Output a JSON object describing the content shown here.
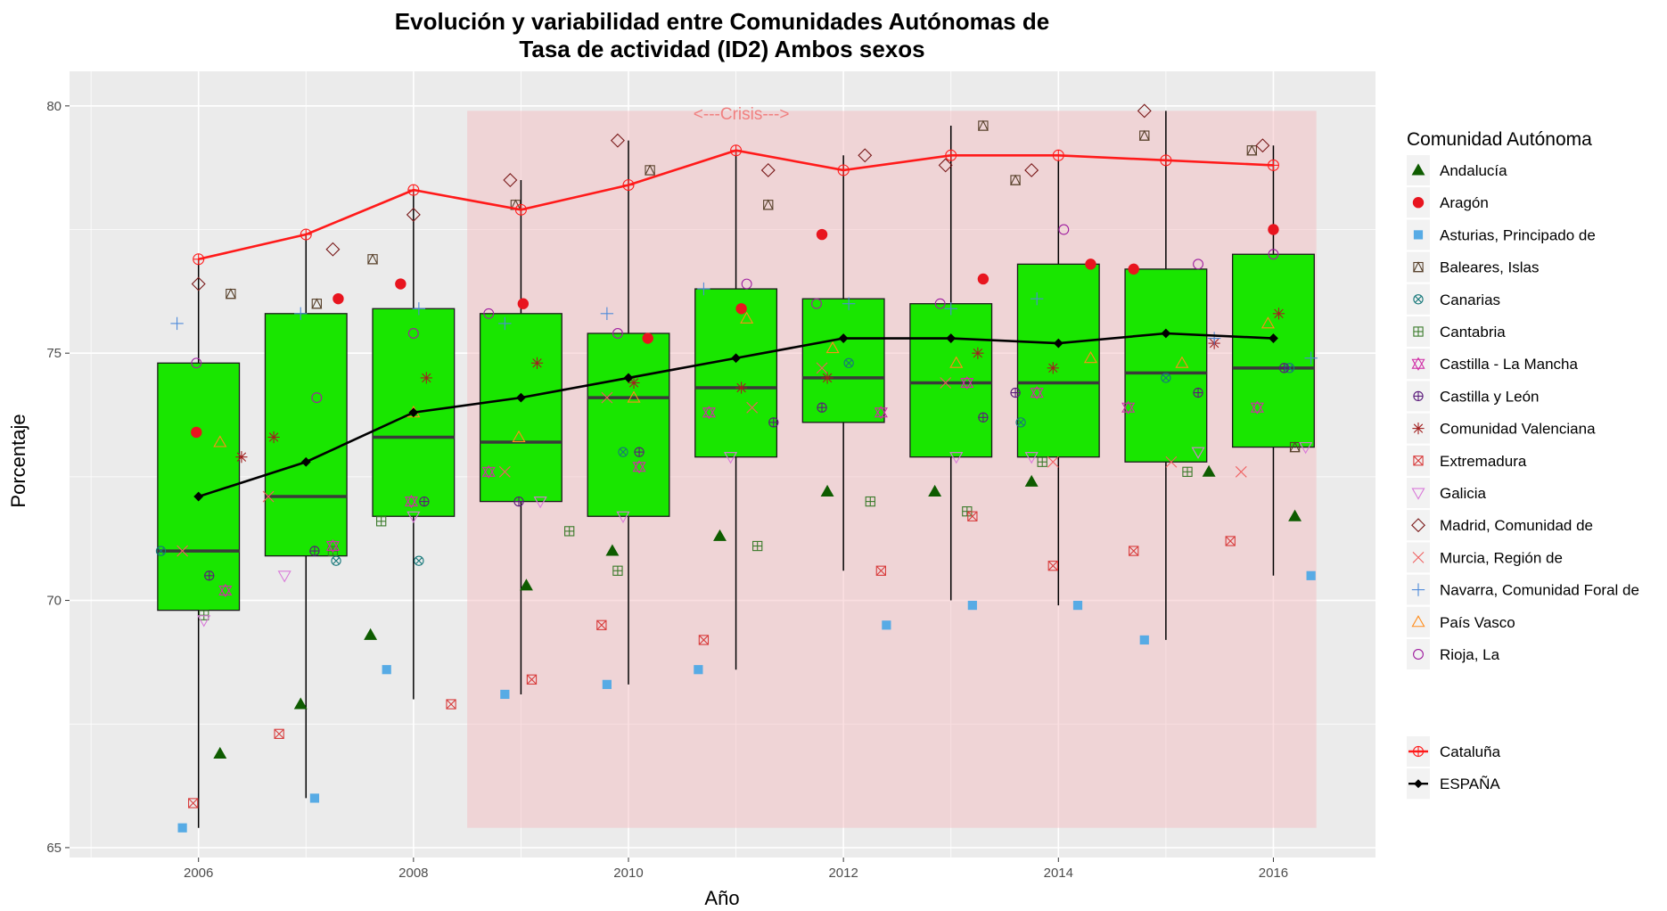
{
  "chart_data": {
    "type": "box",
    "title_line1": "Evolución y variabilidad entre Comunidades Autónomas de",
    "title_line2": "Tasa de actividad (ID2) Ambos sexos",
    "xlabel": "Año",
    "ylabel": "Porcentaje",
    "xlim": [
      2004.8,
      2016.95
    ],
    "ylim": [
      64.8,
      80.7
    ],
    "x_ticks": [
      2006,
      2008,
      2010,
      2012,
      2014,
      2016
    ],
    "y_ticks": [
      65,
      70,
      75,
      80
    ],
    "grid": true,
    "legend_position": "right",
    "legend_title": "Comunidad Autónoma",
    "crisis": {
      "label": "<---Crisis--->",
      "x_start": 2008.5,
      "x_end": 2016.4,
      "y_min": 65.4,
      "y_max": 79.9,
      "color": "#f4b8bd"
    },
    "box_color": "#19e600",
    "boxes": [
      {
        "year": 2006,
        "low": 65.4,
        "q1": 69.8,
        "median": 71.0,
        "q3": 74.8,
        "high": 76.9
      },
      {
        "year": 2007,
        "low": 66.0,
        "q1": 70.9,
        "median": 72.1,
        "q3": 75.8,
        "high": 77.4
      },
      {
        "year": 2008,
        "low": 68.0,
        "q1": 71.7,
        "median": 73.3,
        "q3": 75.9,
        "high": 78.3
      },
      {
        "year": 2009,
        "low": 68.1,
        "q1": 72.0,
        "median": 73.2,
        "q3": 75.8,
        "high": 78.5
      },
      {
        "year": 2010,
        "low": 68.3,
        "q1": 71.7,
        "median": 74.1,
        "q3": 75.4,
        "high": 79.3
      },
      {
        "year": 2011,
        "low": 68.6,
        "q1": 72.9,
        "median": 74.3,
        "q3": 76.3,
        "high": 79.1
      },
      {
        "year": 2012,
        "low": 70.6,
        "q1": 73.6,
        "median": 74.5,
        "q3": 76.1,
        "high": 79.0
      },
      {
        "year": 2013,
        "low": 70.0,
        "q1": 72.9,
        "median": 74.4,
        "q3": 76.0,
        "high": 79.6
      },
      {
        "year": 2014,
        "low": 69.9,
        "q1": 72.9,
        "median": 74.4,
        "q3": 76.8,
        "high": 78.9
      },
      {
        "year": 2015,
        "low": 69.2,
        "q1": 72.8,
        "median": 74.6,
        "q3": 76.7,
        "high": 79.9
      },
      {
        "year": 2016,
        "low": 70.5,
        "q1": 73.1,
        "median": 74.7,
        "q3": 77.0,
        "high": 79.2
      }
    ],
    "lines": [
      {
        "name": "Cataluña",
        "color": "#ff1a1a",
        "shape": "circleplus",
        "x": [
          2006,
          2007,
          2008,
          2009,
          2010,
          2011,
          2012,
          2013,
          2014,
          2015,
          2016
        ],
        "y": [
          76.9,
          77.4,
          78.3,
          77.9,
          78.4,
          79.1,
          78.7,
          79.0,
          79.0,
          78.9,
          78.8
        ]
      },
      {
        "name": "ESPAÑA",
        "color": "#000000",
        "shape": "diamondfill",
        "x": [
          2006,
          2007,
          2008,
          2009,
          2010,
          2011,
          2012,
          2013,
          2014,
          2015,
          2016
        ],
        "y": [
          72.1,
          72.8,
          73.8,
          74.1,
          74.5,
          74.9,
          75.3,
          75.3,
          75.2,
          75.4,
          75.3
        ]
      }
    ],
    "series": [
      {
        "name": "Andalucía",
        "shape": "trianglefill",
        "color": "#0e5c00",
        "x": [
          2006.2,
          2006.95,
          2007.6,
          2009.05,
          2009.85,
          2010.85,
          2011.85,
          2012.85,
          2013.75,
          2015.4,
          2016.2
        ],
        "y": [
          66.9,
          67.9,
          69.3,
          70.3,
          71.0,
          71.3,
          72.2,
          72.2,
          72.4,
          72.6,
          71.7
        ]
      },
      {
        "name": "Aragón",
        "shape": "circlefill",
        "color": "#e8151f",
        "x": [
          2005.98,
          2007.3,
          2007.88,
          2009.02,
          2010.18,
          2011.05,
          2011.8,
          2013.3,
          2014.3,
          2014.7,
          2016.0
        ],
        "y": [
          73.4,
          76.1,
          76.4,
          76.0,
          75.3,
          75.9,
          77.4,
          76.5,
          76.8,
          76.7,
          77.5
        ]
      },
      {
        "name": "Asturias, Principado de",
        "shape": "squarefill",
        "color": "#57abe5",
        "x": [
          2005.85,
          2007.08,
          2007.75,
          2008.85,
          2009.8,
          2010.65,
          2012.4,
          2013.2,
          2014.18,
          2014.8,
          2016.35
        ],
        "y": [
          65.4,
          66.0,
          68.6,
          68.1,
          68.3,
          68.6,
          69.5,
          69.9,
          69.9,
          69.2,
          70.5
        ]
      },
      {
        "name": "Baleares, Islas",
        "shape": "squaretriangle",
        "color": "#57402a",
        "x": [
          2006.3,
          2007.1,
          2007.62,
          2008.95,
          2010.2,
          2011.3,
          2013.3,
          2013.6,
          2014.8,
          2015.8,
          2016.2
        ],
        "y": [
          76.2,
          76.0,
          76.9,
          78.0,
          78.7,
          78.0,
          79.6,
          78.5,
          79.4,
          79.1,
          73.1
        ]
      },
      {
        "name": "Canarias",
        "shape": "circlecross",
        "color": "#17787a",
        "x": [
          2005.65,
          2007.28,
          2008.05,
          2009.95,
          2012.05,
          2013.65,
          2015.0,
          2016.15
        ],
        "y": [
          71.0,
          70.8,
          70.8,
          73.0,
          74.8,
          73.6,
          74.5,
          74.7
        ]
      },
      {
        "name": "Cantabria",
        "shape": "squareplus",
        "color": "#3a7a2a",
        "x": [
          2006.05,
          2007.25,
          2007.7,
          2009.45,
          2009.9,
          2011.2,
          2012.25,
          2013.15,
          2013.85,
          2015.2
        ],
        "y": [
          69.7,
          71.0,
          71.6,
          71.4,
          70.6,
          71.1,
          72.0,
          71.8,
          72.8,
          72.6
        ]
      },
      {
        "name": "Castilla - La Mancha",
        "shape": "star6",
        "color": "#d02ea6",
        "x": [
          2006.25,
          2007.25,
          2007.98,
          2008.7,
          2010.1,
          2010.75,
          2012.35,
          2013.15,
          2013.8,
          2014.65,
          2015.85
        ],
        "y": [
          70.2,
          71.1,
          72.0,
          72.6,
          72.7,
          73.8,
          73.8,
          74.4,
          74.2,
          73.9,
          73.9
        ]
      },
      {
        "name": "Castilla y León",
        "shape": "circleplus",
        "color": "#5a1a7a",
        "x": [
          2006.1,
          2007.08,
          2008.1,
          2008.98,
          2010.1,
          2011.35,
          2011.8,
          2013.3,
          2013.6,
          2015.3,
          2016.1
        ],
        "y": [
          70.5,
          71.0,
          72.0,
          72.0,
          73.0,
          73.6,
          73.9,
          73.7,
          74.2,
          74.2,
          74.7
        ]
      },
      {
        "name": "Comunidad Valenciana",
        "shape": "asterisk",
        "color": "#a12020",
        "x": [
          2006.4,
          2006.7,
          2008.12,
          2009.15,
          2010.05,
          2011.05,
          2011.85,
          2013.25,
          2013.95,
          2015.45,
          2016.05
        ],
        "y": [
          72.9,
          73.3,
          74.5,
          74.8,
          74.4,
          74.3,
          74.5,
          75.0,
          74.7,
          75.2,
          75.8
        ]
      },
      {
        "name": "Extremadura",
        "shape": "squarecross",
        "color": "#d83c3c",
        "x": [
          2005.95,
          2006.75,
          2008.35,
          2009.1,
          2009.75,
          2010.7,
          2012.35,
          2013.2,
          2013.95,
          2014.7,
          2015.6
        ],
        "y": [
          65.9,
          67.3,
          67.9,
          68.4,
          69.5,
          69.2,
          70.6,
          71.7,
          70.7,
          71.0,
          71.2
        ]
      },
      {
        "name": "Galicia",
        "shape": "triangledown",
        "color": "#d97ad9",
        "x": [
          2006.05,
          2006.8,
          2008.0,
          2009.18,
          2009.95,
          2010.95,
          2013.05,
          2013.75,
          2015.3,
          2016.3
        ],
        "y": [
          69.6,
          70.5,
          71.7,
          72.0,
          71.7,
          72.9,
          72.9,
          72.9,
          73.0,
          73.1
        ]
      },
      {
        "name": "Madrid, Comunidad de",
        "shape": "diamond",
        "color": "#7a1a1a",
        "x": [
          2006.0,
          2007.25,
          2008.0,
          2008.9,
          2009.9,
          2011.3,
          2012.2,
          2012.95,
          2013.75,
          2014.8,
          2015.9
        ],
        "y": [
          76.4,
          77.1,
          77.8,
          78.5,
          79.3,
          78.7,
          79.0,
          78.8,
          78.7,
          79.9,
          79.2
        ]
      },
      {
        "name": "Murcia, Región de",
        "shape": "cross",
        "color": "#f06060",
        "x": [
          2005.85,
          2006.65,
          2008.85,
          2009.8,
          2011.15,
          2011.8,
          2012.95,
          2013.95,
          2015.05,
          2015.7
        ],
        "y": [
          71.0,
          72.1,
          72.6,
          74.1,
          73.9,
          74.7,
          74.4,
          72.8,
          72.8,
          72.6
        ]
      },
      {
        "name": "Navarra, Comunidad Foral de",
        "shape": "plus",
        "color": "#4d8ad9",
        "x": [
          2005.8,
          2006.95,
          2008.05,
          2008.85,
          2009.8,
          2010.7,
          2012.05,
          2013.0,
          2013.8,
          2015.45,
          2016.35
        ],
        "y": [
          75.6,
          75.8,
          75.9,
          75.6,
          75.8,
          76.3,
          76.0,
          75.9,
          76.1,
          75.3,
          74.9
        ]
      },
      {
        "name": "País Vasco",
        "shape": "triangle",
        "color": "#ff8c1a",
        "x": [
          2006.2,
          2008.0,
          2008.98,
          2010.05,
          2011.1,
          2011.9,
          2013.05,
          2014.3,
          2015.15,
          2015.95
        ],
        "y": [
          73.2,
          73.8,
          73.3,
          74.1,
          75.7,
          75.1,
          74.8,
          74.9,
          74.8,
          75.6
        ]
      },
      {
        "name": "Rioja, La",
        "shape": "circle",
        "color": "#a020a0",
        "x": [
          2005.98,
          2007.1,
          2008.0,
          2008.7,
          2009.9,
          2011.1,
          2011.75,
          2012.9,
          2014.05,
          2015.3,
          2016.0
        ],
        "y": [
          74.8,
          74.1,
          75.4,
          75.8,
          75.4,
          76.4,
          76.0,
          76.0,
          77.5,
          76.8,
          77.0
        ]
      }
    ]
  }
}
